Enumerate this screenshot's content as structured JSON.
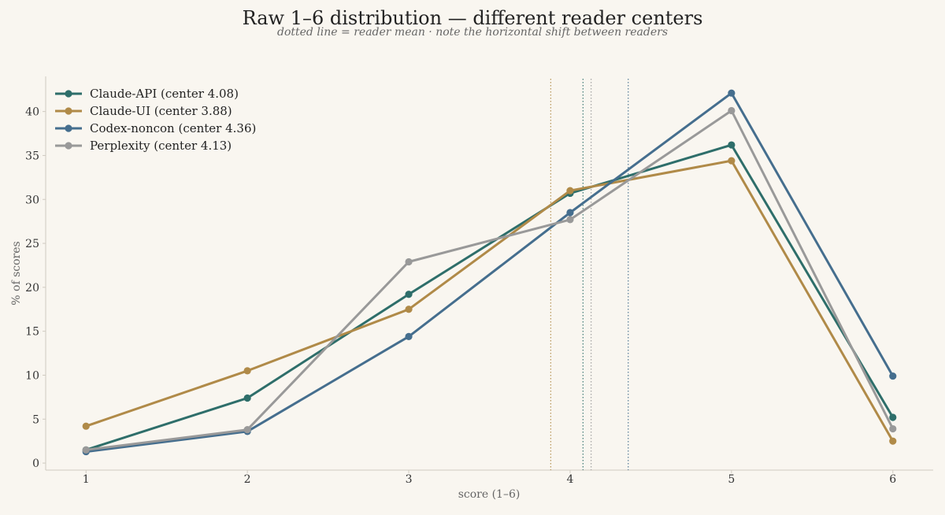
{
  "chart_data": {
    "type": "line",
    "title": "Raw 1–6 distribution — different reader centers",
    "subtitle": "dotted line = reader mean · note the horizontal shift between readers",
    "xlabel": "score (1–6)",
    "ylabel": "% of scores",
    "x": [
      1,
      2,
      3,
      4,
      5,
      6
    ],
    "x_ticks": [
      "1",
      "2",
      "3",
      "4",
      "5",
      "6"
    ],
    "y_ticks": [
      "0",
      "5",
      "10",
      "15",
      "20",
      "25",
      "30",
      "35",
      "40"
    ],
    "xlim": [
      0.75,
      6.25
    ],
    "ylim": [
      -0.8,
      44
    ],
    "grid": false,
    "legend_position": "top-left",
    "series": [
      {
        "name": "Claude-API (center 4.08)",
        "color": "#2e6e6a",
        "values": [
          1.5,
          7.4,
          19.2,
          30.7,
          36.2,
          5.2
        ],
        "center": 4.08
      },
      {
        "name": "Claude-UI (center 3.88)",
        "color": "#b08a48",
        "values": [
          4.2,
          10.5,
          17.5,
          31.0,
          34.4,
          2.5
        ],
        "center": 3.88
      },
      {
        "name": "Codex-noncon (center 4.36)",
        "color": "#456e8e",
        "values": [
          1.3,
          3.6,
          14.4,
          28.5,
          42.1,
          9.9
        ],
        "center": 4.36
      },
      {
        "name": "Perplexity (center 4.13)",
        "color": "#999999",
        "values": [
          1.5,
          3.8,
          22.9,
          27.7,
          40.1,
          3.9
        ],
        "center": 4.13
      }
    ]
  }
}
